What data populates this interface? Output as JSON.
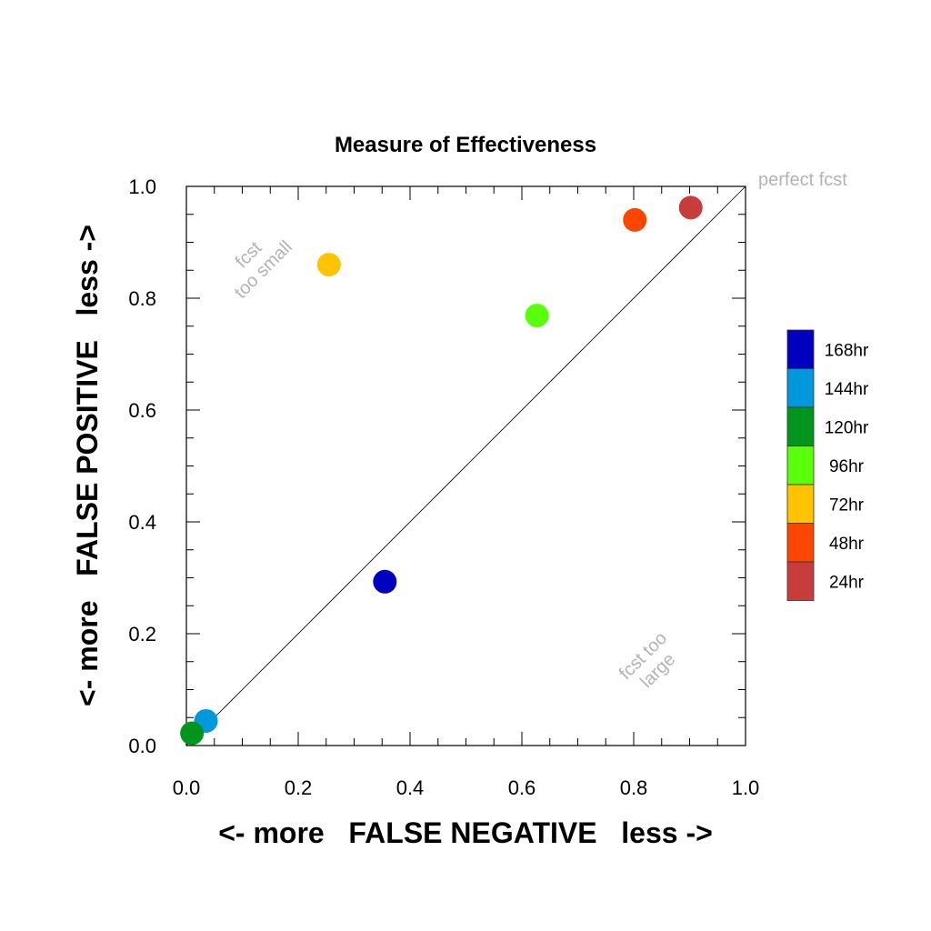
{
  "chart_data": {
    "type": "scatter",
    "title": "Measure of Effectiveness",
    "xlabel": "<- more   FALSE NEGATIVE   less ->",
    "ylabel": "<- more   FALSE POSITIVE   less ->",
    "xlim": [
      0,
      1
    ],
    "ylim": [
      0,
      1
    ],
    "xticks": [
      "0.0",
      "0.2",
      "0.4",
      "0.6",
      "0.8",
      "1.0"
    ],
    "yticks": [
      "0.0",
      "0.2",
      "0.4",
      "0.6",
      "0.8",
      "1.0"
    ],
    "grid": false,
    "diagonal": true,
    "annotations": {
      "perfect": "perfect fcst",
      "too_small": [
        "fcst",
        "too small"
      ],
      "too_large": [
        "fcst too",
        "large"
      ]
    },
    "legend_position": "right",
    "points": [
      {
        "label": "168hr",
        "x": 0.355,
        "y": 0.293,
        "color": "#0000c0"
      },
      {
        "label": "144hr",
        "x": 0.035,
        "y": 0.044,
        "color": "#0098dc"
      },
      {
        "label": "120hr",
        "x": 0.01,
        "y": 0.022,
        "color": "#00961e"
      },
      {
        "label": "96hr",
        "x": 0.627,
        "y": 0.769,
        "color": "#5aff0a"
      },
      {
        "label": "72hr",
        "x": 0.255,
        "y": 0.86,
        "color": "#ffc300"
      },
      {
        "label": "48hr",
        "x": 0.802,
        "y": 0.94,
        "color": "#ff4600"
      },
      {
        "label": "24hr",
        "x": 0.902,
        "y": 0.962,
        "color": "#c83c3c"
      }
    ]
  }
}
